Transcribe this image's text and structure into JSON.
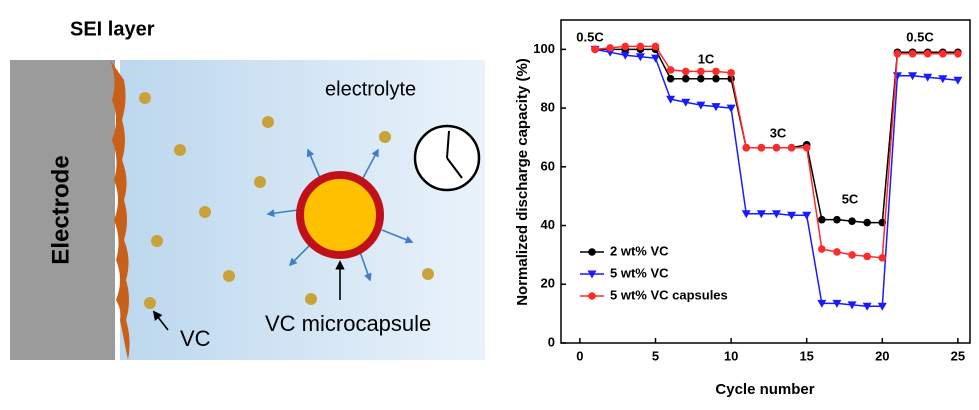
{
  "diagram": {
    "sei_label": "SEI layer",
    "electrolyte_label": "electrolyte",
    "electrode_label": "Electrode",
    "vc_label": "VC",
    "capsule_label": "VC microcapsule"
  },
  "chart_data": {
    "type": "line",
    "xlabel": "Cycle number",
    "ylabel": "Normalized discharge capacity (%)",
    "annotations": [
      "0.5C",
      "1C",
      "3C",
      "5C",
      "0.5C"
    ],
    "x": [
      1,
      2,
      3,
      4,
      5,
      6,
      7,
      8,
      9,
      10,
      11,
      12,
      13,
      14,
      15,
      16,
      17,
      18,
      19,
      20,
      21,
      22,
      23,
      24,
      25
    ],
    "series": [
      {
        "name": "2 wt% VC",
        "color": "#000000",
        "marker": "circle",
        "values": [
          100,
          100,
          100,
          100,
          100,
          90,
          90,
          90,
          90,
          90,
          66.5,
          66.5,
          66.5,
          66.5,
          67.5,
          42,
          42,
          41.5,
          41,
          41,
          99,
          99,
          99,
          99,
          99
        ]
      },
      {
        "name": "5 wt% VC",
        "color": "#1a1aff",
        "marker": "triangle-down",
        "values": [
          100,
          99,
          98,
          97.5,
          97,
          83,
          82,
          81,
          80.5,
          80,
          44,
          44,
          44,
          43.5,
          43.5,
          13.5,
          13.5,
          13,
          12.5,
          12.5,
          91,
          91,
          90.5,
          90,
          89.5
        ]
      },
      {
        "name": "5 wt% VC capsules",
        "color": "#ff2a2a",
        "marker": "circle",
        "values": [
          100,
          100.5,
          101,
          101,
          101,
          93,
          92.5,
          92.5,
          92.5,
          92,
          66.5,
          66.5,
          66.5,
          66.5,
          66.5,
          32,
          31,
          30,
          29.5,
          29,
          98.5,
          98.5,
          98.5,
          98.5,
          98.5
        ]
      }
    ],
    "xlim": [
      -1.25,
      25.8
    ],
    "xticks": [
      0,
      5,
      10,
      15,
      20,
      25
    ],
    "ylim": [
      0,
      110
    ],
    "yticks": [
      0,
      20,
      40,
      60,
      80,
      100
    ],
    "legend": "lower left"
  }
}
